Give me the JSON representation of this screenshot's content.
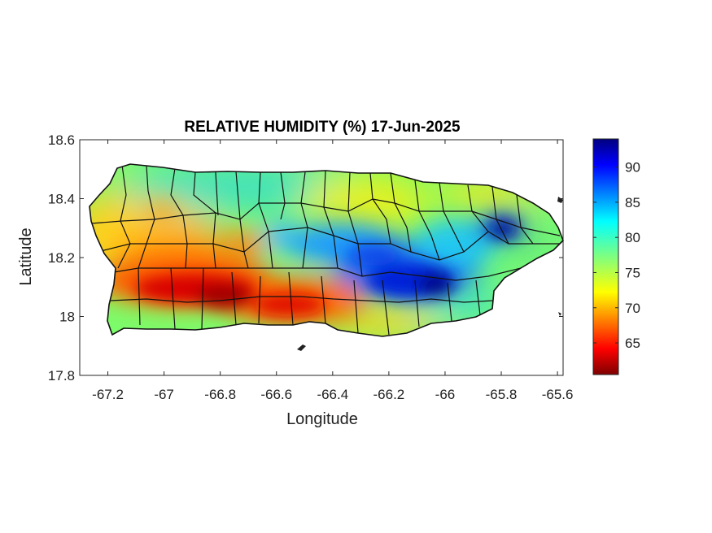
{
  "chart_data": {
    "type": "heatmap",
    "title": "RELATIVE HUMIDITY (%) 17-Jun-2025",
    "xlabel": "Longitude",
    "ylabel": "Latitude",
    "xlim": [
      -67.3,
      -65.58
    ],
    "ylim": [
      17.8,
      18.6
    ],
    "x_ticks": [
      "-67.2",
      "-67",
      "-66.8",
      "-66.6",
      "-66.4",
      "-66.2",
      "-66",
      "-65.8",
      "-65.6"
    ],
    "y_ticks": [
      "18.6",
      "18.4",
      "18.2",
      "18",
      "17.8"
    ],
    "colorbar": {
      "ticks": [
        "90",
        "85",
        "80",
        "75",
        "70",
        "65"
      ],
      "range": [
        60.5,
        94
      ],
      "colormap": "jet"
    },
    "grid": false,
    "features": [
      {
        "lon": -66.98,
        "lat": 18.08,
        "value": 63
      },
      {
        "lon": -66.82,
        "lat": 18.06,
        "value": 61
      },
      {
        "lon": -66.65,
        "lat": 18.05,
        "value": 64
      },
      {
        "lon": -66.5,
        "lat": 18.02,
        "value": 65
      },
      {
        "lon": -66.72,
        "lat": 18.26,
        "value": 68
      },
      {
        "lon": -66.25,
        "lat": 18.2,
        "value": 86
      },
      {
        "lon": -66.05,
        "lat": 18.1,
        "value": 92
      },
      {
        "lon": -65.78,
        "lat": 18.29,
        "value": 94
      },
      {
        "lon": -66.3,
        "lat": 18.48,
        "value": 76
      },
      {
        "lon": -66.75,
        "lat": 18.48,
        "value": 80
      },
      {
        "lon": -67.15,
        "lat": 18.38,
        "value": 74
      }
    ]
  }
}
